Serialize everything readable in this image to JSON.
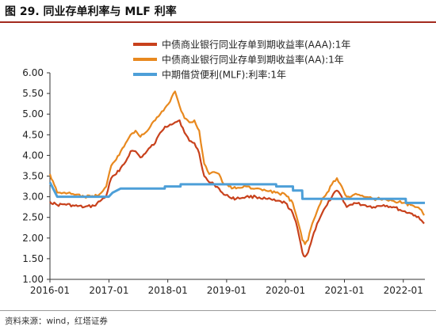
{
  "figure": {
    "title": "图 29. 同业存单利率与 MLF 利率",
    "source": "资料来源：wind，红塔证券"
  },
  "chart_data": {
    "type": "line",
    "title": "",
    "xlabel": "",
    "ylabel": "",
    "ylim": [
      1.0,
      6.0
    ],
    "y_ticks": [
      "6.00",
      "5.50",
      "5.00",
      "4.50",
      "4.00",
      "3.50",
      "3.00",
      "2.50",
      "2.00",
      "1.50",
      "1.00"
    ],
    "x_ticks": [
      "2016-01",
      "2017-01",
      "2018-01",
      "2019-01",
      "2020-01",
      "2021-01",
      "2022-01"
    ],
    "xlim": [
      "2016-01-01",
      "2022-05-15"
    ],
    "grid": false,
    "legend_position": "top-right",
    "series": [
      {
        "name": "中债商业银行同业存单到期收益率(AAA):1年",
        "color": "#c8411c",
        "dates": [
          "2016-01-01",
          "2016-02-15",
          "2016-04-01",
          "2016-06-01",
          "2016-08-01",
          "2016-10-01",
          "2016-11-15",
          "2016-12-15",
          "2017-01-15",
          "2017-02-15",
          "2017-03-15",
          "2017-04-15",
          "2017-05-15",
          "2017-06-15",
          "2017-07-15",
          "2017-08-15",
          "2017-09-15",
          "2017-10-15",
          "2017-11-15",
          "2017-12-15",
          "2018-01-15",
          "2018-02-15",
          "2018-03-15",
          "2018-04-15",
          "2018-05-15",
          "2018-06-15",
          "2018-07-15",
          "2018-08-15",
          "2018-09-15",
          "2018-10-15",
          "2018-11-15",
          "2018-12-15",
          "2019-01-15",
          "2019-03-01",
          "2019-05-01",
          "2019-07-01",
          "2019-09-01",
          "2019-11-01",
          "2020-01-01",
          "2020-02-15",
          "2020-03-15",
          "2020-04-15",
          "2020-05-01",
          "2020-05-20",
          "2020-06-15",
          "2020-07-15",
          "2020-08-15",
          "2020-09-15",
          "2020-10-15",
          "2020-11-15",
          "2020-12-15",
          "2021-01-15",
          "2021-03-01",
          "2021-05-01",
          "2021-07-01",
          "2021-09-01",
          "2021-11-01",
          "2022-01-01",
          "2022-02-15",
          "2022-03-15",
          "2022-04-15",
          "2022-05-10"
        ],
        "values": [
          2.88,
          2.8,
          2.82,
          2.78,
          2.75,
          2.78,
          2.92,
          3.02,
          3.45,
          3.55,
          3.7,
          3.85,
          4.1,
          4.1,
          3.95,
          4.05,
          4.2,
          4.3,
          4.55,
          4.7,
          4.75,
          4.8,
          4.85,
          4.55,
          4.35,
          4.3,
          4.05,
          3.5,
          3.35,
          3.3,
          3.2,
          3.05,
          3.0,
          2.95,
          3.0,
          3.0,
          2.95,
          2.9,
          2.85,
          2.6,
          2.25,
          1.65,
          1.55,
          1.65,
          2.0,
          2.35,
          2.6,
          2.8,
          3.0,
          3.15,
          3.0,
          2.75,
          2.85,
          2.8,
          2.75,
          2.8,
          2.75,
          2.65,
          2.6,
          2.55,
          2.45,
          2.35
        ]
      },
      {
        "name": "中债商业银行同业存单到期收益率(AA):1年",
        "color": "#e8891f",
        "dates": [
          "2016-01-01",
          "2016-02-15",
          "2016-04-01",
          "2016-06-01",
          "2016-08-01",
          "2016-10-01",
          "2016-11-15",
          "2016-12-15",
          "2017-01-15",
          "2017-02-15",
          "2017-03-15",
          "2017-04-15",
          "2017-05-15",
          "2017-06-15",
          "2017-07-15",
          "2017-08-15",
          "2017-09-15",
          "2017-10-15",
          "2017-11-15",
          "2017-12-15",
          "2018-01-15",
          "2018-02-15",
          "2018-03-15",
          "2018-04-15",
          "2018-05-15",
          "2018-06-15",
          "2018-07-15",
          "2018-08-15",
          "2018-09-15",
          "2018-10-15",
          "2018-11-15",
          "2018-12-15",
          "2019-01-15",
          "2019-03-01",
          "2019-05-01",
          "2019-07-01",
          "2019-09-01",
          "2019-11-01",
          "2020-01-01",
          "2020-02-15",
          "2020-03-15",
          "2020-04-15",
          "2020-05-01",
          "2020-05-20",
          "2020-06-15",
          "2020-07-15",
          "2020-08-15",
          "2020-09-15",
          "2020-10-15",
          "2020-11-15",
          "2020-12-15",
          "2021-01-15",
          "2021-03-01",
          "2021-05-01",
          "2021-07-01",
          "2021-09-01",
          "2021-11-01",
          "2022-01-01",
          "2022-02-15",
          "2022-03-15",
          "2022-04-15",
          "2022-05-10"
        ],
        "values": [
          3.55,
          3.1,
          3.1,
          3.05,
          3.0,
          3.0,
          3.1,
          3.25,
          3.75,
          3.9,
          4.1,
          4.3,
          4.5,
          4.6,
          4.45,
          4.55,
          4.7,
          4.85,
          5.0,
          5.15,
          5.3,
          5.55,
          5.2,
          4.9,
          4.8,
          4.85,
          4.6,
          3.8,
          3.55,
          3.6,
          3.55,
          3.3,
          3.25,
          3.2,
          3.25,
          3.2,
          3.15,
          3.1,
          3.05,
          2.85,
          2.45,
          1.95,
          1.85,
          1.95,
          2.35,
          2.65,
          2.95,
          3.1,
          3.3,
          3.45,
          3.25,
          3.0,
          3.05,
          3.0,
          2.95,
          2.95,
          2.9,
          2.85,
          2.8,
          2.75,
          2.7,
          2.55
        ]
      },
      {
        "name": "中期借贷便利(MLF):利率:1年",
        "color": "#4d9fd8",
        "dates": [
          "2016-01-01",
          "2016-02-15",
          "2016-12-31",
          "2017-01-24",
          "2017-03-15",
          "2017-12-13",
          "2017-12-14",
          "2018-03-21",
          "2018-03-22",
          "2019-11-04",
          "2019-11-05",
          "2020-02-16",
          "2020-02-17",
          "2020-04-14",
          "2020-04-15",
          "2022-01-16",
          "2022-01-17",
          "2022-05-15"
        ],
        "values": [
          3.35,
          3.0,
          3.0,
          3.1,
          3.2,
          3.2,
          3.25,
          3.25,
          3.3,
          3.3,
          3.25,
          3.25,
          3.15,
          3.15,
          2.95,
          2.95,
          2.85,
          2.85
        ]
      }
    ]
  }
}
